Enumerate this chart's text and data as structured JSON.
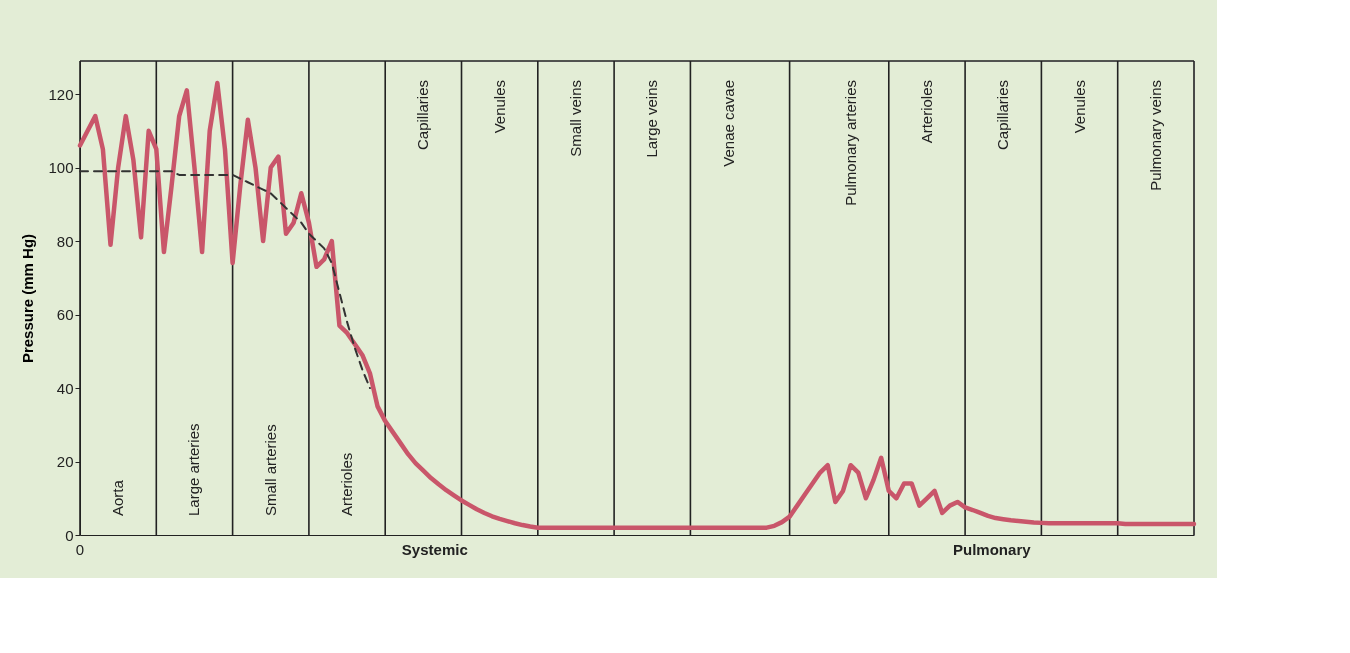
{
  "chart_data": {
    "type": "line",
    "ylabel": "Pressure (mm Hg)",
    "categories": [
      null,
      null,
      null,
      null,
      null,
      "Aorta",
      null,
      null,
      null,
      null,
      null,
      null,
      null,
      null,
      null,
      "Large arteries",
      null,
      null,
      null,
      null,
      null,
      null,
      null,
      null,
      null,
      "Small arteries",
      null,
      null,
      null,
      null,
      null,
      null,
      null,
      null,
      null,
      "Arterioles",
      null,
      null,
      null,
      null,
      null,
      null,
      null,
      null,
      null,
      "Capillaries",
      null,
      null,
      null,
      null,
      null,
      null,
      null,
      null,
      null,
      "Venules",
      null,
      null,
      null,
      null,
      null,
      null,
      null,
      null,
      null,
      "Small veins",
      null,
      null,
      null,
      null,
      null,
      null,
      null,
      null,
      null,
      "Large veins",
      null,
      null,
      null,
      null,
      null,
      null,
      null,
      null,
      null,
      "Venae cavae",
      null,
      null,
      null,
      null,
      null,
      null,
      null,
      null,
      null,
      null,
      null,
      null,
      null,
      null,
      null,
      "Pulmonary arteries",
      null,
      null,
      null,
      null,
      null,
      null,
      null,
      null,
      null,
      "Arterioles",
      null,
      null,
      null,
      null,
      null,
      null,
      null,
      null,
      null,
      "Capillaries",
      null,
      null,
      null,
      null,
      null,
      null,
      null,
      null,
      null,
      "Venules",
      null,
      null,
      null,
      null,
      null,
      null,
      null,
      null,
      null,
      "Pulmonary veins",
      null,
      null,
      null,
      null,
      null
    ],
    "ylim": [
      0,
      129
    ],
    "yticks": [
      0,
      20,
      40,
      60,
      80,
      100,
      120
    ],
    "grid": false,
    "legend": false,
    "marker": "none",
    "series": [
      {
        "type": "line",
        "color": "#c9566a",
        "line_style": "solid",
        "values": [
          106,
          110,
          114,
          105,
          79,
          100,
          114,
          102,
          81,
          110,
          105,
          77,
          95,
          114,
          121,
          100,
          77,
          110,
          123,
          105,
          74,
          95,
          113,
          100,
          80,
          100,
          103,
          82,
          85,
          93,
          85,
          73,
          75,
          80,
          57,
          55,
          52,
          49,
          44,
          35,
          31,
          28,
          25,
          22,
          19.5,
          17.5,
          15.5,
          13.8,
          12.2,
          10.8,
          9.4,
          8.2,
          7,
          6,
          5.1,
          4.4,
          3.8,
          3.2,
          2.7,
          2.3,
          2,
          2,
          2,
          2,
          2,
          2,
          2,
          2,
          2,
          2,
          2,
          2,
          2,
          2,
          2,
          2,
          2,
          2,
          2,
          2,
          2,
          2,
          2,
          2,
          2,
          2,
          2,
          2,
          2,
          2,
          2,
          2.5,
          3.5,
          5,
          8,
          11,
          14,
          17,
          19,
          9,
          12,
          19,
          17,
          10,
          15,
          21,
          12,
          10,
          14,
          14,
          8,
          10,
          12,
          6,
          8,
          9,
          7.5,
          6.8,
          6,
          5.2,
          4.6,
          4.3,
          4,
          3.8,
          3.6,
          3.4,
          3.3,
          3.2,
          3.2,
          3.2,
          3.2,
          3.2,
          3.2,
          3.2,
          3.2,
          3.2,
          3.2,
          3,
          3,
          3,
          3,
          3,
          3,
          3,
          3,
          3,
          3
        ]
      },
      {
        "type": "line",
        "color": "#333333",
        "line_style": "dashed",
        "values": [
          99,
          99,
          99,
          99,
          99,
          99,
          99,
          99,
          99,
          99,
          99,
          99,
          99,
          98,
          98,
          98,
          98,
          98,
          98,
          98,
          98,
          97,
          96,
          95,
          94,
          93,
          91,
          89,
          87,
          85,
          82,
          80,
          78,
          74,
          66,
          58,
          51,
          45,
          40,
          null,
          null,
          null,
          null,
          null,
          null,
          null,
          null,
          null,
          null,
          null,
          null,
          null,
          null,
          null,
          null,
          null,
          null,
          null,
          null,
          null,
          null,
          null,
          null,
          null,
          null,
          null,
          null,
          null,
          null,
          null,
          null,
          null,
          null,
          null,
          null,
          null,
          null,
          null,
          null,
          null,
          null,
          null,
          null,
          null,
          null,
          null,
          null,
          null,
          null,
          null,
          null,
          null,
          null,
          null,
          null,
          null,
          null,
          null,
          null,
          null,
          null,
          null,
          null,
          null,
          null,
          null,
          null,
          null,
          null,
          null,
          null,
          null,
          null,
          null,
          null,
          null,
          null,
          null,
          null,
          null,
          null,
          null,
          null,
          null,
          null,
          null,
          null,
          null,
          null,
          null,
          null,
          null,
          null,
          null,
          null,
          null,
          null,
          null,
          null,
          null,
          null,
          null,
          null,
          null,
          null,
          null,
          null
        ]
      }
    ],
    "annotations": [
      "0",
      "Systemic",
      "Pulmonary"
    ]
  }
}
